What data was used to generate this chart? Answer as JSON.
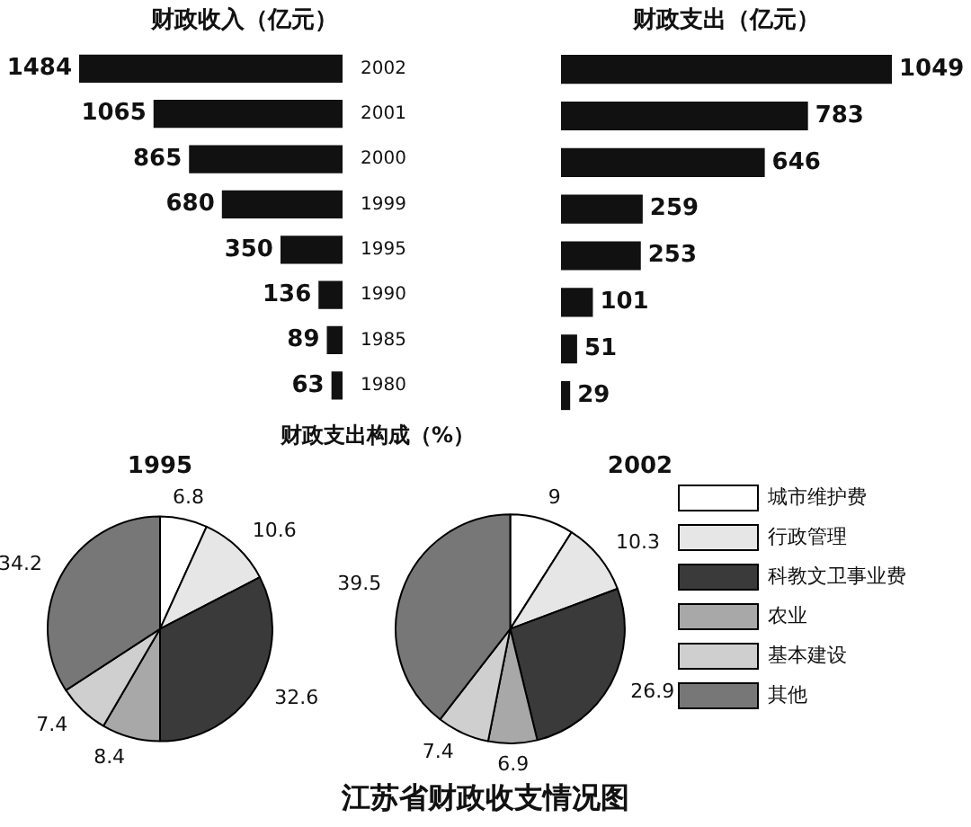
{
  "chart_data": [
    {
      "type": "bar",
      "orientation": "horizontal",
      "title": "财政收入（亿元）",
      "categories": [
        "2002",
        "2001",
        "2000",
        "1999",
        "1995",
        "1990",
        "1985",
        "1980"
      ],
      "values": [
        1484,
        1065,
        865,
        680,
        350,
        136,
        89,
        63
      ],
      "color": "#111111",
      "xlim": [
        1484,
        0
      ],
      "data_labels": true,
      "tick_labels": "y",
      "legend": false
    },
    {
      "type": "bar",
      "orientation": "horizontal",
      "title": "财政支出（亿元）",
      "categories": [
        null,
        null,
        null,
        null,
        null,
        null,
        null,
        null
      ],
      "values": [
        1049,
        783,
        646,
        259,
        253,
        101,
        51,
        29
      ],
      "color": "#111111",
      "xlim": [
        0,
        1049
      ],
      "data_labels": true,
      "tick_labels": false,
      "legend": false
    },
    {
      "type": "pie",
      "title": "1995",
      "categories": [
        null,
        null,
        null,
        null,
        null,
        null
      ],
      "values": [
        6.8,
        10.6,
        32.6,
        8.4,
        7.4,
        34.2
      ],
      "colors": [
        "#ffffff",
        "#e6e6e6",
        "#3a3a3a",
        "#a8a8a8",
        "#cfcfcf",
        "#777777"
      ],
      "data_labels": true,
      "legend": false,
      "annotations": [
        "财政支出构成（%）"
      ]
    },
    {
      "type": "pie",
      "title": "2002",
      "categories": [
        "城市维护费",
        "行政管理",
        "科教文卫事业费",
        "农业",
        "基本建设",
        "其他"
      ],
      "values": [
        9,
        10.3,
        26.9,
        6.9,
        7.4,
        39.5
      ],
      "colors": [
        "#ffffff",
        "#e6e6e6",
        "#3a3a3a",
        "#a8a8a8",
        "#cfcfcf",
        "#777777"
      ],
      "data_labels": true,
      "legend": "right",
      "annotations": [
        "江苏省财政收支情况图"
      ]
    }
  ]
}
